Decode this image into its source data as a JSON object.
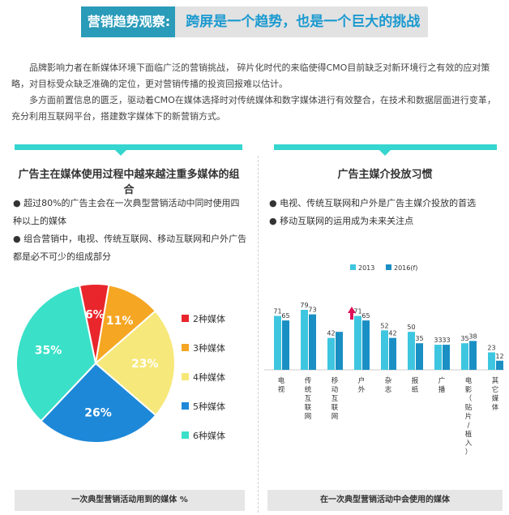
{
  "header": {
    "title_left": "营销趋势观察:",
    "title_right": "跨屏是一个趋势，也是一个巨大的挑战"
  },
  "intro": {
    "p1": "品牌影响力者在新媒体环境下面临广泛的营销挑战，  碎片化时代的来临使得CMO目前缺乏对新环境行之有效的应对策略，对目标受众缺乏准确的定位，更对营销传播的投资回报难以估计。",
    "p2": "多方面前置信息的匮乏，驱动着CMO在媒体选择时对传统媒体和数字媒体进行有效整合，在技术和数据层面进行变革，充分利用互联网平台，搭建数字媒体下的新营销方式。"
  },
  "left_panel": {
    "title": "广告主在媒体使用过程中越来越注重多媒体的组合",
    "bullets": [
      "● 超过80%的广告主会在一次典型营销活动中同时使用四种以上的媒体",
      "● 组合营销中，电视、传统互联网、移动互联网和户外广告都是必不可少的组成部分"
    ],
    "footer": "一次典型营销活动用到的媒体 %"
  },
  "right_panel": {
    "title": "广告主媒介投放习惯",
    "bullets": [
      "● 电视、传统互联网和户外是广告主媒介投放的首选",
      "● 移动互联网的运用成为未来关注点"
    ],
    "footer": "在一次典型营销活动中会使用的媒体"
  },
  "chart_data": [
    {
      "type": "pie",
      "labels": [
        "2种媒体",
        "3种媒体",
        "4种媒体",
        "5种媒体",
        "6种媒体"
      ],
      "values": [
        6,
        11,
        23,
        26,
        35
      ],
      "value_labels": [
        "6%",
        "11%",
        "23%",
        "26%",
        "35%"
      ],
      "colors": [
        "#e8262c",
        "#f5a623",
        "#f6e87a",
        "#1e88d8",
        "#3ae0c8"
      ],
      "legend_position": "right",
      "title": ""
    },
    {
      "type": "bar",
      "categories": [
        "电视",
        "传统互联网",
        "移动互联网",
        "户外",
        "杂志",
        "报纸",
        "广播",
        "电影（贴片/植入）",
        "其它媒体"
      ],
      "series": [
        {
          "name": "2013",
          "values": [
            71,
            79,
            42,
            71,
            52,
            50,
            33,
            35,
            23
          ],
          "color": "#3ec6e0"
        },
        {
          "name": "2016(f)",
          "values": [
            65,
            73,
            50,
            65,
            42,
            35,
            33,
            38,
            12
          ],
          "color": "#1a8fc4"
        }
      ],
      "value_labels": [
        [
          "71",
          "79",
          "42",
          "71",
          "52",
          "50",
          "33",
          "35",
          "23"
        ],
        [
          "65",
          "73",
          "",
          "65",
          "42",
          "35",
          "33",
          "38",
          "12"
        ]
      ],
      "ylim": [
        0,
        90
      ],
      "legend_position": "top",
      "highlight": {
        "category": "移动互联网",
        "note": "arrow-up"
      },
      "title": ""
    }
  ]
}
